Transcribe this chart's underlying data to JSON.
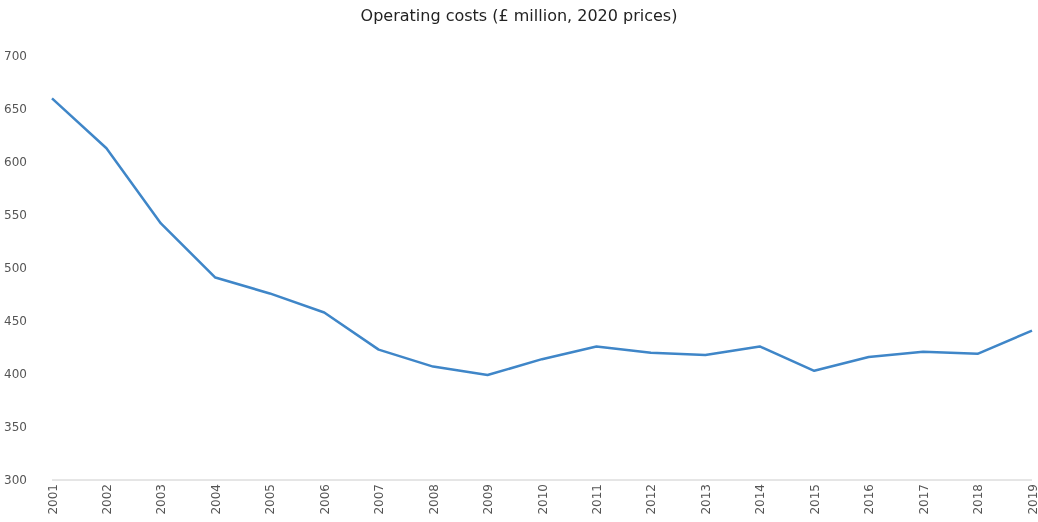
{
  "chart_data": {
    "type": "line",
    "title": "Operating costs (£ million, 2020 prices)",
    "categories": [
      "2001",
      "2002",
      "2003",
      "2004",
      "2005",
      "2006",
      "2007",
      "2008",
      "2009",
      "2010",
      "2011",
      "2012",
      "2013",
      "2014",
      "2015",
      "2016",
      "2017",
      "2018",
      "2019"
    ],
    "series": [
      {
        "color": "#3f86c8",
        "values": [
          660,
          613,
          542,
          491,
          476,
          458,
          423,
          407,
          399,
          414,
          426,
          420,
          418,
          426,
          403,
          416,
          421,
          419,
          441
        ]
      }
    ],
    "ylim": [
      300,
      700
    ],
    "yticks": [
      300,
      350,
      400,
      450,
      500,
      550,
      600,
      650,
      700
    ],
    "grid": false,
    "legend": false,
    "marker": "none",
    "line_style": "solid"
  }
}
